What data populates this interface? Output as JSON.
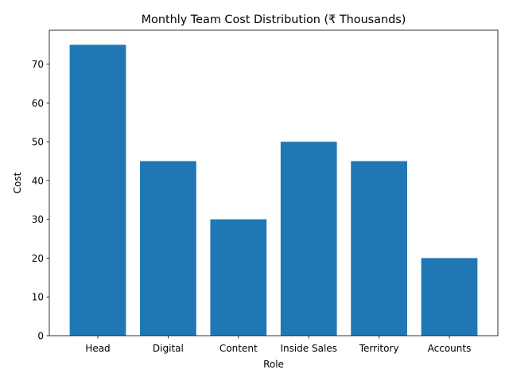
{
  "chart_data": {
    "type": "bar",
    "title": "Monthly Team Cost Distribution (₹ Thousands)",
    "xlabel": "Role",
    "ylabel": "Cost",
    "categories": [
      "Head",
      "Digital",
      "Content",
      "Inside Sales",
      "Territory",
      "Accounts"
    ],
    "values": [
      75,
      45,
      30,
      50,
      45,
      20
    ],
    "ylim": [
      0,
      78.75
    ],
    "yticks": [
      0,
      10,
      20,
      30,
      40,
      50,
      60,
      70
    ],
    "grid": false,
    "bar_color": "#1f77b4"
  }
}
